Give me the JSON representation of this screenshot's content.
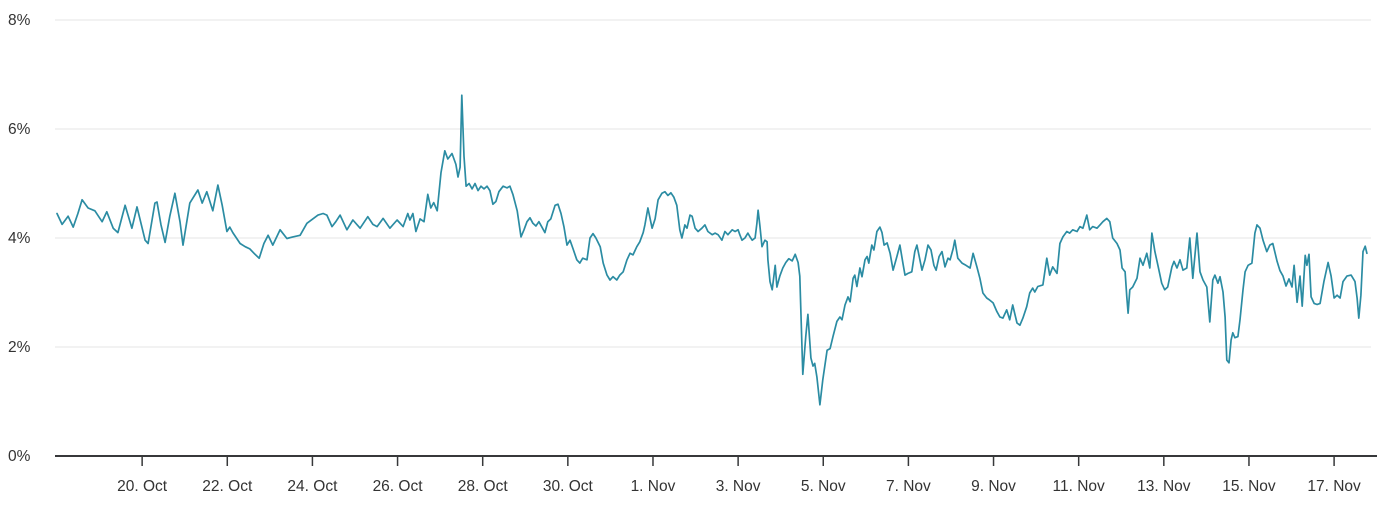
{
  "colors": {
    "background": "#ffffff",
    "line": "#2b8ca3",
    "gridline": "#e6e6e6",
    "axis": "#37383a",
    "label_text": "#333333"
  },
  "chart_data": {
    "type": "line",
    "title": "",
    "xlabel": "",
    "ylabel": "",
    "unit": "%",
    "grid": "horizontal-only",
    "legend": "none",
    "y_axis": {
      "min": 0,
      "max": 8,
      "tick_interval": 2,
      "tick_values": [
        0,
        2,
        4,
        6,
        8
      ],
      "tick_labels": [
        "0%",
        "2%",
        "4%",
        "6%",
        "8%"
      ]
    },
    "x_axis": {
      "kind": "time",
      "days_span": 30.77,
      "ticks": [
        {
          "t": 2,
          "label": "20. Oct"
        },
        {
          "t": 4,
          "label": "22. Oct"
        },
        {
          "t": 6,
          "label": "24. Oct"
        },
        {
          "t": 8,
          "label": "26. Oct"
        },
        {
          "t": 10,
          "label": "28. Oct"
        },
        {
          "t": 12,
          "label": "30. Oct"
        },
        {
          "t": 14,
          "label": "1. Nov"
        },
        {
          "t": 16,
          "label": "3. Nov"
        },
        {
          "t": 18,
          "label": "5. Nov"
        },
        {
          "t": 20,
          "label": "7. Nov"
        },
        {
          "t": 22,
          "label": "9. Nov"
        },
        {
          "t": 24,
          "label": "11. Nov"
        },
        {
          "t": 26,
          "label": "13. Nov"
        },
        {
          "t": 28,
          "label": "15. Nov"
        },
        {
          "t": 30,
          "label": "17. Nov"
        }
      ]
    },
    "points": [
      [
        0.0,
        4.45
      ],
      [
        0.12,
        4.25
      ],
      [
        0.26,
        4.4
      ],
      [
        0.38,
        4.2
      ],
      [
        0.49,
        4.45
      ],
      [
        0.59,
        4.7
      ],
      [
        0.73,
        4.55
      ],
      [
        0.89,
        4.5
      ],
      [
        1.06,
        4.3
      ],
      [
        1.17,
        4.48
      ],
      [
        1.32,
        4.18
      ],
      [
        1.43,
        4.1
      ],
      [
        1.6,
        4.6
      ],
      [
        1.76,
        4.18
      ],
      [
        1.88,
        4.57
      ],
      [
        2.07,
        3.96
      ],
      [
        2.14,
        3.9
      ],
      [
        2.3,
        4.64
      ],
      [
        2.35,
        4.66
      ],
      [
        2.44,
        4.25
      ],
      [
        2.54,
        3.92
      ],
      [
        2.65,
        4.4
      ],
      [
        2.77,
        4.82
      ],
      [
        2.89,
        4.3
      ],
      [
        2.96,
        3.87
      ],
      [
        3.12,
        4.64
      ],
      [
        3.31,
        4.88
      ],
      [
        3.41,
        4.64
      ],
      [
        3.52,
        4.85
      ],
      [
        3.66,
        4.5
      ],
      [
        3.78,
        4.97
      ],
      [
        3.88,
        4.6
      ],
      [
        3.99,
        4.12
      ],
      [
        4.06,
        4.2
      ],
      [
        4.13,
        4.1
      ],
      [
        4.3,
        3.9
      ],
      [
        4.42,
        3.84
      ],
      [
        4.53,
        3.8
      ],
      [
        4.65,
        3.7
      ],
      [
        4.75,
        3.63
      ],
      [
        4.86,
        3.9
      ],
      [
        4.96,
        4.05
      ],
      [
        5.07,
        3.87
      ],
      [
        5.24,
        4.15
      ],
      [
        5.4,
        3.99
      ],
      [
        5.54,
        4.02
      ],
      [
        5.71,
        4.05
      ],
      [
        5.87,
        4.27
      ],
      [
        6.01,
        4.35
      ],
      [
        6.13,
        4.42
      ],
      [
        6.25,
        4.45
      ],
      [
        6.34,
        4.42
      ],
      [
        6.46,
        4.21
      ],
      [
        6.55,
        4.3
      ],
      [
        6.65,
        4.42
      ],
      [
        6.81,
        4.15
      ],
      [
        6.95,
        4.33
      ],
      [
        7.12,
        4.18
      ],
      [
        7.3,
        4.39
      ],
      [
        7.42,
        4.25
      ],
      [
        7.52,
        4.21
      ],
      [
        7.66,
        4.36
      ],
      [
        7.82,
        4.18
      ],
      [
        7.99,
        4.33
      ],
      [
        8.13,
        4.21
      ],
      [
        8.24,
        4.45
      ],
      [
        8.29,
        4.33
      ],
      [
        8.36,
        4.45
      ],
      [
        8.43,
        4.12
      ],
      [
        8.53,
        4.35
      ],
      [
        8.62,
        4.3
      ],
      [
        8.71,
        4.8
      ],
      [
        8.78,
        4.55
      ],
      [
        8.85,
        4.65
      ],
      [
        8.93,
        4.5
      ],
      [
        9.02,
        5.2
      ],
      [
        9.11,
        5.6
      ],
      [
        9.18,
        5.45
      ],
      [
        9.28,
        5.55
      ],
      [
        9.37,
        5.35
      ],
      [
        9.42,
        5.12
      ],
      [
        9.47,
        5.3
      ],
      [
        9.51,
        6.62
      ],
      [
        9.56,
        5.5
      ],
      [
        9.61,
        4.95
      ],
      [
        9.68,
        5.0
      ],
      [
        9.75,
        4.9
      ],
      [
        9.82,
        5.0
      ],
      [
        9.89,
        4.87
      ],
      [
        9.96,
        4.95
      ],
      [
        10.03,
        4.9
      ],
      [
        10.1,
        4.95
      ],
      [
        10.17,
        4.87
      ],
      [
        10.24,
        4.62
      ],
      [
        10.31,
        4.67
      ],
      [
        10.38,
        4.85
      ],
      [
        10.48,
        4.95
      ],
      [
        10.57,
        4.92
      ],
      [
        10.64,
        4.95
      ],
      [
        10.71,
        4.8
      ],
      [
        10.81,
        4.5
      ],
      [
        10.9,
        4.02
      ],
      [
        10.97,
        4.15
      ],
      [
        11.04,
        4.3
      ],
      [
        11.11,
        4.37
      ],
      [
        11.18,
        4.27
      ],
      [
        11.25,
        4.22
      ],
      [
        11.32,
        4.3
      ],
      [
        11.39,
        4.2
      ],
      [
        11.46,
        4.1
      ],
      [
        11.53,
        4.3
      ],
      [
        11.6,
        4.35
      ],
      [
        11.7,
        4.6
      ],
      [
        11.77,
        4.62
      ],
      [
        11.84,
        4.45
      ],
      [
        11.91,
        4.2
      ],
      [
        11.98,
        3.87
      ],
      [
        12.05,
        3.96
      ],
      [
        12.12,
        3.81
      ],
      [
        12.21,
        3.6
      ],
      [
        12.28,
        3.54
      ],
      [
        12.35,
        3.63
      ],
      [
        12.45,
        3.6
      ],
      [
        12.52,
        4.0
      ],
      [
        12.59,
        4.08
      ],
      [
        12.66,
        4.0
      ],
      [
        12.76,
        3.84
      ],
      [
        12.83,
        3.54
      ],
      [
        12.92,
        3.32
      ],
      [
        12.99,
        3.23
      ],
      [
        13.06,
        3.29
      ],
      [
        13.15,
        3.23
      ],
      [
        13.22,
        3.32
      ],
      [
        13.3,
        3.38
      ],
      [
        13.39,
        3.6
      ],
      [
        13.46,
        3.72
      ],
      [
        13.53,
        3.69
      ],
      [
        13.62,
        3.84
      ],
      [
        13.69,
        3.93
      ],
      [
        13.77,
        4.1
      ],
      [
        13.81,
        4.24
      ],
      [
        13.88,
        4.55
      ],
      [
        13.98,
        4.18
      ],
      [
        14.05,
        4.35
      ],
      [
        14.12,
        4.7
      ],
      [
        14.21,
        4.82
      ],
      [
        14.28,
        4.85
      ],
      [
        14.35,
        4.78
      ],
      [
        14.42,
        4.83
      ],
      [
        14.49,
        4.75
      ],
      [
        14.56,
        4.6
      ],
      [
        14.63,
        4.15
      ],
      [
        14.68,
        4.0
      ],
      [
        14.75,
        4.24
      ],
      [
        14.8,
        4.18
      ],
      [
        14.87,
        4.42
      ],
      [
        14.92,
        4.4
      ],
      [
        14.99,
        4.18
      ],
      [
        15.06,
        4.12
      ],
      [
        15.15,
        4.18
      ],
      [
        15.22,
        4.24
      ],
      [
        15.29,
        4.12
      ],
      [
        15.39,
        4.06
      ],
      [
        15.46,
        4.09
      ],
      [
        15.53,
        4.06
      ],
      [
        15.62,
        3.96
      ],
      [
        15.69,
        4.12
      ],
      [
        15.76,
        4.06
      ],
      [
        15.86,
        4.15
      ],
      [
        15.93,
        4.12
      ],
      [
        16.0,
        4.15
      ],
      [
        16.04,
        4.06
      ],
      [
        16.09,
        3.96
      ],
      [
        16.16,
        4.0
      ],
      [
        16.23,
        4.09
      ],
      [
        16.28,
        4.02
      ],
      [
        16.33,
        3.96
      ],
      [
        16.4,
        4.0
      ],
      [
        16.44,
        4.27
      ],
      [
        16.47,
        4.51
      ],
      [
        16.51,
        4.24
      ],
      [
        16.56,
        3.84
      ],
      [
        16.63,
        3.96
      ],
      [
        16.68,
        3.93
      ],
      [
        16.7,
        3.6
      ],
      [
        16.75,
        3.2
      ],
      [
        16.8,
        3.05
      ],
      [
        16.87,
        3.5
      ],
      [
        16.91,
        3.1
      ],
      [
        16.98,
        3.3
      ],
      [
        17.05,
        3.45
      ],
      [
        17.12,
        3.55
      ],
      [
        17.19,
        3.62
      ],
      [
        17.27,
        3.58
      ],
      [
        17.34,
        3.7
      ],
      [
        17.41,
        3.55
      ],
      [
        17.45,
        3.3
      ],
      [
        17.52,
        1.5
      ],
      [
        17.59,
        2.2
      ],
      [
        17.64,
        2.6
      ],
      [
        17.71,
        1.8
      ],
      [
        17.76,
        1.65
      ],
      [
        17.8,
        1.7
      ],
      [
        17.85,
        1.45
      ],
      [
        17.92,
        0.94
      ],
      [
        17.99,
        1.4
      ],
      [
        18.09,
        1.94
      ],
      [
        18.16,
        1.97
      ],
      [
        18.23,
        2.2
      ],
      [
        18.32,
        2.47
      ],
      [
        18.39,
        2.55
      ],
      [
        18.44,
        2.5
      ],
      [
        18.51,
        2.77
      ],
      [
        18.58,
        2.92
      ],
      [
        18.63,
        2.83
      ],
      [
        18.7,
        3.26
      ],
      [
        18.74,
        3.32
      ],
      [
        18.79,
        3.11
      ],
      [
        18.86,
        3.45
      ],
      [
        18.91,
        3.29
      ],
      [
        18.98,
        3.6
      ],
      [
        19.03,
        3.66
      ],
      [
        19.07,
        3.54
      ],
      [
        19.14,
        3.87
      ],
      [
        19.19,
        3.78
      ],
      [
        19.26,
        4.12
      ],
      [
        19.33,
        4.2
      ],
      [
        19.38,
        4.1
      ],
      [
        19.43,
        3.87
      ],
      [
        19.5,
        3.91
      ],
      [
        19.57,
        3.72
      ],
      [
        19.64,
        3.41
      ],
      [
        19.73,
        3.66
      ],
      [
        19.8,
        3.87
      ],
      [
        19.87,
        3.54
      ],
      [
        19.92,
        3.32
      ],
      [
        19.99,
        3.35
      ],
      [
        20.08,
        3.38
      ],
      [
        20.15,
        3.75
      ],
      [
        20.2,
        3.87
      ],
      [
        20.27,
        3.6
      ],
      [
        20.32,
        3.41
      ],
      [
        20.39,
        3.6
      ],
      [
        20.46,
        3.87
      ],
      [
        20.53,
        3.78
      ],
      [
        20.6,
        3.5
      ],
      [
        20.65,
        3.41
      ],
      [
        20.72,
        3.66
      ],
      [
        20.79,
        3.75
      ],
      [
        20.86,
        3.47
      ],
      [
        20.93,
        3.63
      ],
      [
        20.98,
        3.6
      ],
      [
        21.05,
        3.8
      ],
      [
        21.09,
        3.96
      ],
      [
        21.16,
        3.63
      ],
      [
        21.26,
        3.54
      ],
      [
        21.35,
        3.5
      ],
      [
        21.45,
        3.45
      ],
      [
        21.52,
        3.72
      ],
      [
        21.61,
        3.47
      ],
      [
        21.68,
        3.26
      ],
      [
        21.75,
        2.99
      ],
      [
        21.84,
        2.9
      ],
      [
        21.91,
        2.86
      ],
      [
        21.99,
        2.81
      ],
      [
        22.08,
        2.65
      ],
      [
        22.15,
        2.55
      ],
      [
        22.22,
        2.53
      ],
      [
        22.31,
        2.68
      ],
      [
        22.38,
        2.5
      ],
      [
        22.45,
        2.77
      ],
      [
        22.55,
        2.44
      ],
      [
        22.62,
        2.4
      ],
      [
        22.69,
        2.53
      ],
      [
        22.78,
        2.74
      ],
      [
        22.85,
        2.99
      ],
      [
        22.92,
        3.08
      ],
      [
        22.97,
        3.01
      ],
      [
        23.04,
        3.11
      ],
      [
        23.16,
        3.14
      ],
      [
        23.25,
        3.63
      ],
      [
        23.32,
        3.32
      ],
      [
        23.39,
        3.47
      ],
      [
        23.49,
        3.35
      ],
      [
        23.56,
        3.9
      ],
      [
        23.63,
        4.02
      ],
      [
        23.72,
        4.12
      ],
      [
        23.79,
        4.09
      ],
      [
        23.86,
        4.15
      ],
      [
        23.96,
        4.12
      ],
      [
        24.03,
        4.21
      ],
      [
        24.1,
        4.18
      ],
      [
        24.19,
        4.42
      ],
      [
        24.26,
        4.15
      ],
      [
        24.33,
        4.21
      ],
      [
        24.43,
        4.18
      ],
      [
        24.5,
        4.24
      ],
      [
        24.57,
        4.3
      ],
      [
        24.66,
        4.36
      ],
      [
        24.73,
        4.3
      ],
      [
        24.8,
        4.0
      ],
      [
        24.9,
        3.9
      ],
      [
        24.97,
        3.78
      ],
      [
        25.02,
        3.45
      ],
      [
        25.09,
        3.38
      ],
      [
        25.13,
        2.92
      ],
      [
        25.16,
        2.62
      ],
      [
        25.2,
        3.05
      ],
      [
        25.27,
        3.1
      ],
      [
        25.37,
        3.26
      ],
      [
        25.44,
        3.63
      ],
      [
        25.51,
        3.5
      ],
      [
        25.6,
        3.72
      ],
      [
        25.67,
        3.45
      ],
      [
        25.72,
        4.09
      ],
      [
        25.79,
        3.75
      ],
      [
        25.86,
        3.5
      ],
      [
        25.95,
        3.17
      ],
      [
        26.02,
        3.05
      ],
      [
        26.09,
        3.1
      ],
      [
        26.19,
        3.47
      ],
      [
        26.24,
        3.57
      ],
      [
        26.31,
        3.45
      ],
      [
        26.38,
        3.6
      ],
      [
        26.45,
        3.41
      ],
      [
        26.54,
        3.45
      ],
      [
        26.61,
        4.0
      ],
      [
        26.68,
        3.26
      ],
      [
        26.78,
        4.09
      ],
      [
        26.85,
        3.38
      ],
      [
        26.92,
        3.23
      ],
      [
        27.01,
        3.1
      ],
      [
        27.08,
        2.46
      ],
      [
        27.15,
        3.23
      ],
      [
        27.2,
        3.32
      ],
      [
        27.27,
        3.17
      ],
      [
        27.32,
        3.29
      ],
      [
        27.39,
        3.01
      ],
      [
        27.44,
        2.55
      ],
      [
        27.48,
        1.76
      ],
      [
        27.53,
        1.71
      ],
      [
        27.58,
        2.13
      ],
      [
        27.62,
        2.26
      ],
      [
        27.67,
        2.17
      ],
      [
        27.74,
        2.19
      ],
      [
        27.79,
        2.5
      ],
      [
        27.86,
        3.05
      ],
      [
        27.91,
        3.38
      ],
      [
        27.98,
        3.5
      ],
      [
        28.07,
        3.54
      ],
      [
        28.14,
        4.09
      ],
      [
        28.19,
        4.24
      ],
      [
        28.26,
        4.18
      ],
      [
        28.33,
        3.96
      ],
      [
        28.42,
        3.75
      ],
      [
        28.49,
        3.87
      ],
      [
        28.56,
        3.9
      ],
      [
        28.66,
        3.57
      ],
      [
        28.73,
        3.4
      ],
      [
        28.8,
        3.3
      ],
      [
        28.87,
        3.12
      ],
      [
        28.94,
        3.25
      ],
      [
        29.01,
        3.1
      ],
      [
        29.06,
        3.5
      ],
      [
        29.13,
        2.82
      ],
      [
        29.2,
        3.3
      ],
      [
        29.25,
        2.75
      ],
      [
        29.32,
        3.68
      ],
      [
        29.36,
        3.5
      ],
      [
        29.41,
        3.7
      ],
      [
        29.46,
        2.92
      ],
      [
        29.53,
        2.8
      ],
      [
        29.6,
        2.78
      ],
      [
        29.67,
        2.8
      ],
      [
        29.76,
        3.2
      ],
      [
        29.86,
        3.55
      ],
      [
        29.93,
        3.3
      ],
      [
        30.0,
        2.9
      ],
      [
        30.07,
        2.95
      ],
      [
        30.14,
        2.9
      ],
      [
        30.21,
        3.2
      ],
      [
        30.3,
        3.3
      ],
      [
        30.4,
        3.32
      ],
      [
        30.49,
        3.2
      ],
      [
        30.54,
        2.9
      ],
      [
        30.58,
        2.53
      ],
      [
        30.63,
        2.95
      ],
      [
        30.68,
        3.75
      ],
      [
        30.73,
        3.85
      ],
      [
        30.77,
        3.72
      ]
    ]
  }
}
